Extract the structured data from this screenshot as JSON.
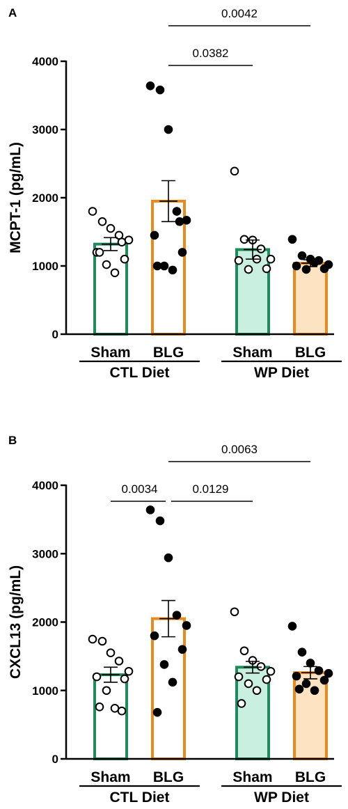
{
  "chart_data": [
    {
      "panel": "A",
      "type": "bar",
      "ylabel": "MCPT-1 (pg/mL)",
      "ylim": [
        0,
        4000
      ],
      "yticks": [
        0,
        1000,
        2000,
        3000,
        4000
      ],
      "categories": [
        "Sham",
        "BLG",
        "Sham",
        "BLG"
      ],
      "groups": [
        {
          "label": "CTL Diet",
          "categories": [
            0,
            1
          ]
        },
        {
          "label": "WP Diet",
          "categories": [
            2,
            3
          ]
        }
      ],
      "bars": [
        {
          "category": "Sham",
          "group": "CTL Diet",
          "mean": 1320,
          "sem": 95,
          "edge": "#1f8a5c",
          "fill": "#ffffff"
        },
        {
          "category": "BLG",
          "group": "CTL Diet",
          "mean": 1950,
          "sem": 300,
          "edge": "#ea8a1a",
          "fill": "#ffffff"
        },
        {
          "category": "Sham",
          "group": "WP Diet",
          "mean": 1240,
          "sem": 140,
          "edge": "#1f8a5c",
          "fill": "#c9efe0"
        },
        {
          "category": "BLG",
          "group": "WP Diet",
          "mean": 1040,
          "sem": 50,
          "edge": "#ea8a1a",
          "fill": "#fde3c2"
        }
      ],
      "points": [
        [
          1800,
          1650,
          1550,
          1450,
          1380,
          1200,
          1100,
          1020,
          900,
          1200,
          1350
        ],
        [
          3640,
          3580,
          3000,
          1800,
          1670,
          1450,
          1200,
          1000,
          940,
          1000,
          1650
        ],
        [
          2390,
          1390,
          1380,
          1250,
          1100,
          1080,
          960,
          950,
          1100
        ],
        [
          1390,
          1150,
          1100,
          1080,
          1020,
          1000,
          960,
          950,
          1050
        ]
      ],
      "point_fill": [
        "open",
        "filled",
        "open",
        "filled"
      ],
      "comparisons": [
        {
          "from": 1,
          "to": 2,
          "p": "0.0382"
        },
        {
          "from": 1,
          "to": 3,
          "p": "0.0042"
        }
      ]
    },
    {
      "panel": "B",
      "type": "bar",
      "ylabel": "CXCL13 (pg/mL)",
      "ylim": [
        0,
        4000
      ],
      "yticks": [
        0,
        1000,
        2000,
        3000,
        4000
      ],
      "categories": [
        "Sham",
        "BLG",
        "Sham",
        "BLG"
      ],
      "groups": [
        {
          "label": "CTL Diet",
          "categories": [
            0,
            1
          ]
        },
        {
          "label": "WP Diet",
          "categories": [
            2,
            3
          ]
        }
      ],
      "bars": [
        {
          "category": "Sham",
          "group": "CTL Diet",
          "mean": 1230,
          "sem": 110,
          "edge": "#1f8a5c",
          "fill": "#ffffff"
        },
        {
          "category": "BLG",
          "group": "CTL Diet",
          "mean": 2050,
          "sem": 265,
          "edge": "#ea8a1a",
          "fill": "#ffffff"
        },
        {
          "category": "Sham",
          "group": "WP Diet",
          "mean": 1340,
          "sem": 85,
          "edge": "#1f8a5c",
          "fill": "#c9efe0"
        },
        {
          "category": "BLG",
          "group": "WP Diet",
          "mean": 1260,
          "sem": 90,
          "edge": "#ea8a1a",
          "fill": "#fde3c2"
        }
      ],
      "points": [
        [
          1750,
          1720,
          1550,
          1430,
          1280,
          1200,
          1170,
          1000,
          740,
          760,
          700
        ],
        [
          3640,
          3480,
          2940,
          2100,
          1950,
          1800,
          1600,
          1380,
          1120,
          680
        ],
        [
          2150,
          1580,
          1440,
          1350,
          1280,
          1200,
          1160,
          1100,
          1000,
          810
        ],
        [
          1940,
          1560,
          1400,
          1290,
          1250,
          1210,
          1150,
          1100,
          1000,
          1020
        ]
      ],
      "point_fill": [
        "open",
        "filled",
        "open",
        "filled"
      ],
      "comparisons": [
        {
          "from": 0,
          "to": 1,
          "p": "0.0034"
        },
        {
          "from": 1,
          "to": 2,
          "p": "0.0129"
        },
        {
          "from": 1,
          "to": 3,
          "p": "0.0063"
        }
      ]
    }
  ]
}
